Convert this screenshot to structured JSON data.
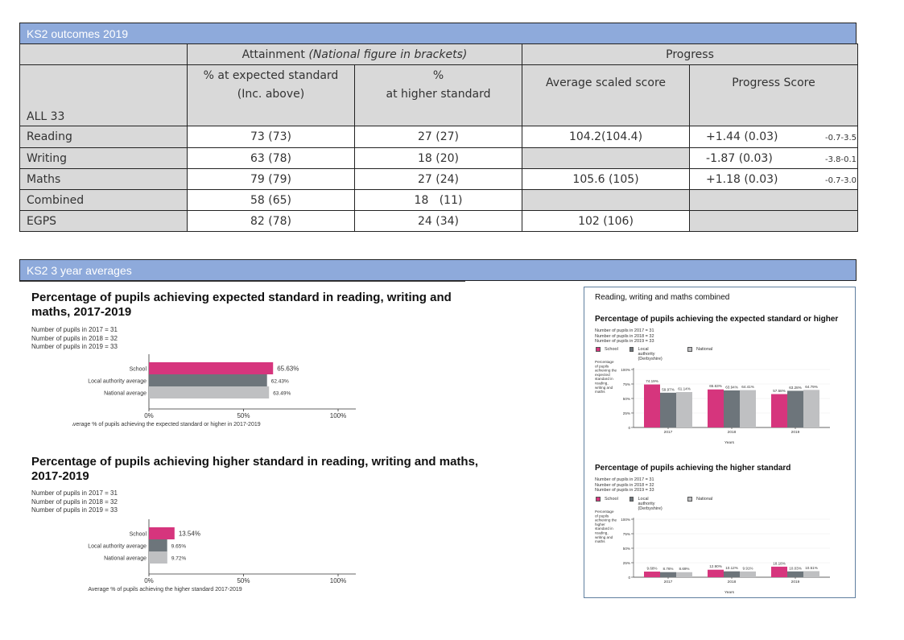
{
  "section1": {
    "title": "KS2 outcomes 2019"
  },
  "table": {
    "group_headers": {
      "attainment_prefix": "Attainment ",
      "attainment_italic": "(National figure in brackets)",
      "progress": "Progress"
    },
    "col_headers": {
      "expected_line1": "% at expected standard",
      "expected_line2": "(Inc. above)",
      "higher_line1": "%",
      "higher_line2": "at higher standard",
      "avg_scaled": "Average scaled score",
      "progress_score": "Progress Score"
    },
    "cohort_label": "ALL 33",
    "rows": [
      {
        "subject": "Reading",
        "expected": "73 (73)",
        "higher": "27 (27)",
        "scaled": "104.2(104.4)",
        "progress": "+1.44  (0.03)",
        "range": "-0.7-3.5"
      },
      {
        "subject": "Writing",
        "expected": "63 (78)",
        "higher": "18 (20)",
        "scaled": "",
        "progress": " -1.87  (0.03)",
        "range": "-3.8-0.1"
      },
      {
        "subject": "Maths",
        "expected": "79 (79)",
        "higher": "27 (24)",
        "scaled": "105.6 (105)",
        "progress": "+1.18  (0.03)",
        "range": "-0.7-3.0"
      },
      {
        "subject": "Combined",
        "expected": "58 (65)",
        "higher": "18   (11)",
        "scaled": "",
        "progress": "",
        "range": ""
      },
      {
        "subject": "EGPS",
        "expected": "82 (78)",
        "higher": "24 (34)",
        "scaled": "102 (106)",
        "progress": "",
        "range": ""
      }
    ]
  },
  "section2": {
    "title": "KS2 3 year averages"
  },
  "pupil_counts": [
    "Number of pupils in 2017 = 31",
    "Number of pupils in 2018 = 32",
    "Number of pupils in 2019 = 33"
  ],
  "colors": {
    "school": "#d6357d",
    "local_authority": "#6d757b",
    "national": "#bfc0c2"
  },
  "chart_data": [
    {
      "type": "bar",
      "orientation": "horizontal",
      "title": "Percentage of pupils achieving expected standard in reading, writing and maths, 2017-2019",
      "categories": [
        "School",
        "Local authority average",
        "National average"
      ],
      "values": [
        65.63,
        62.43,
        63.49
      ],
      "value_labels": [
        "65.63%",
        "62.43%",
        "63.49%"
      ],
      "xlabel": "Average % of pupils achieving the expected standard or higher in 2017-2019",
      "xticks": [
        "0%",
        "50%",
        "100%"
      ],
      "xlim": [
        0,
        100
      ]
    },
    {
      "type": "bar",
      "orientation": "horizontal",
      "title": "Percentage of pupils achieving higher standard in reading, writing and maths, 2017-2019",
      "categories": [
        "School",
        "Local authority average",
        "National average"
      ],
      "values": [
        13.54,
        9.65,
        9.72
      ],
      "value_labels": [
        "13.54%",
        "9.65%",
        "9.72%"
      ],
      "xlabel": "Average % of pupils achieving the higher standard 2017-2019",
      "xticks": [
        "0%",
        "50%",
        "100%"
      ],
      "xlim": [
        0,
        100
      ]
    },
    {
      "type": "bar",
      "orientation": "vertical",
      "title": "Percentage of pupils achieving the expected standard or higher",
      "categories": [
        "2017",
        "2018",
        "2019"
      ],
      "series": [
        {
          "name": "School",
          "values": [
            74.19,
            65.63,
            57.58
          ]
        },
        {
          "name": "Local authority (Derbyshire)",
          "values": [
            59.97,
            63.94,
            63.28
          ]
        },
        {
          "name": "National",
          "values": [
            61.14,
            64.41,
            64.79
          ]
        }
      ],
      "ylabel": "Percentage of pupils achieving the expected standard in reading, writing and maths",
      "xlabel": "Years",
      "yticks": [
        "0",
        "25%",
        "50%",
        "75%",
        "100%"
      ],
      "ylim": [
        0,
        100
      ],
      "legend": "top-left"
    },
    {
      "type": "bar",
      "orientation": "vertical",
      "title": "Percentage of pupils achieving the higher standard",
      "categories": [
        "2017",
        "2018",
        "2019"
      ],
      "series": [
        {
          "name": "School",
          "values": [
            9.68,
            12.9,
            18.18
          ]
        },
        {
          "name": "Local authority (Derbyshire)",
          "values": [
            8.76,
            10.12,
            10.03
          ]
        },
        {
          "name": "National",
          "values": [
            8.69,
            9.91,
            10.51
          ]
        }
      ],
      "ylabel": "Percentage of pupils achieving the higher standard in reading, writing and maths",
      "xlabel": "Years",
      "yticks": [
        "0",
        "25%",
        "50%",
        "75%",
        "100%"
      ],
      "ylim": [
        0,
        100
      ],
      "legend": "top-left"
    }
  ],
  "right_panel": {
    "heading": "Reading, writing and maths combined",
    "legend": {
      "school": "School",
      "la_line1": "Local authority",
      "la_line2": "(Derbyshire)",
      "national": "National"
    },
    "ylabel_expected": [
      "Percentage",
      "of pupils",
      "achieving the",
      "expected",
      "standard in",
      "reading,",
      "writing and",
      "maths"
    ],
    "ylabel_higher": [
      "Percentage",
      "of pupils",
      "achieving the",
      "higher",
      "standard in",
      "reading,",
      "writing and",
      "maths"
    ]
  }
}
